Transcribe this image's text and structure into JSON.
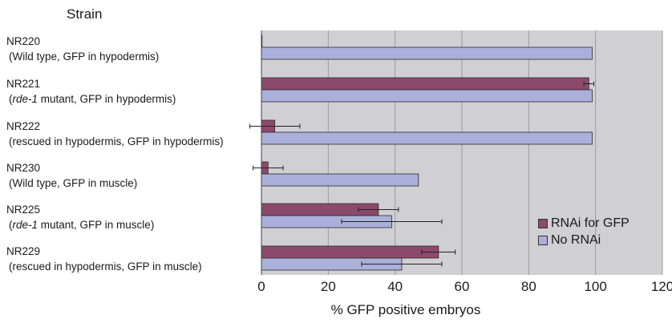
{
  "chart_data": {
    "type": "bar",
    "orientation": "horizontal",
    "y_heading": "Strain",
    "xlabel": "% GFP positive embryos",
    "xlim": [
      0,
      120
    ],
    "xticks": [
      "0",
      "20",
      "40",
      "60",
      "80",
      "100",
      "120"
    ],
    "grid": "vertical",
    "legend_position": "bottom-right",
    "categories": [
      {
        "name": "NR220",
        "desc_pre": "(Wild type, GFP in hypodermis)",
        "desc_italic": "",
        "desc_post": ""
      },
      {
        "name": "NR221",
        "desc_pre": "(",
        "desc_italic": "rde-1",
        "desc_post": " mutant, GFP in hypodermis)"
      },
      {
        "name": "NR222",
        "desc_pre": "(rescued in hypodermis, GFP in hypodermis)",
        "desc_italic": "",
        "desc_post": ""
      },
      {
        "name": "NR230",
        "desc_pre": "(Wild type, GFP in muscle)",
        "desc_italic": "",
        "desc_post": ""
      },
      {
        "name": "NR225",
        "desc_pre": "(",
        "desc_italic": "rde-1",
        "desc_post": " mutant, GFP in muscle)"
      },
      {
        "name": "NR229",
        "desc_pre": "(rescued in hypodermis, GFP in muscle)",
        "desc_italic": "",
        "desc_post": ""
      }
    ],
    "series": [
      {
        "name": "RNAi for GFP",
        "color": "#8c4a6b",
        "values": [
          0,
          98,
          4,
          2,
          35,
          53
        ],
        "errors": [
          0,
          1.5,
          7.5,
          4.5,
          6,
          5
        ]
      },
      {
        "name": "No RNAi",
        "color": "#aab0d9",
        "values": [
          99,
          99,
          99,
          47,
          39,
          42
        ],
        "errors": [
          0,
          0,
          0,
          0,
          15,
          12
        ]
      }
    ],
    "colors": {
      "plot_background": "#cfcfd4",
      "gridline": "#9a9a9f"
    }
  }
}
